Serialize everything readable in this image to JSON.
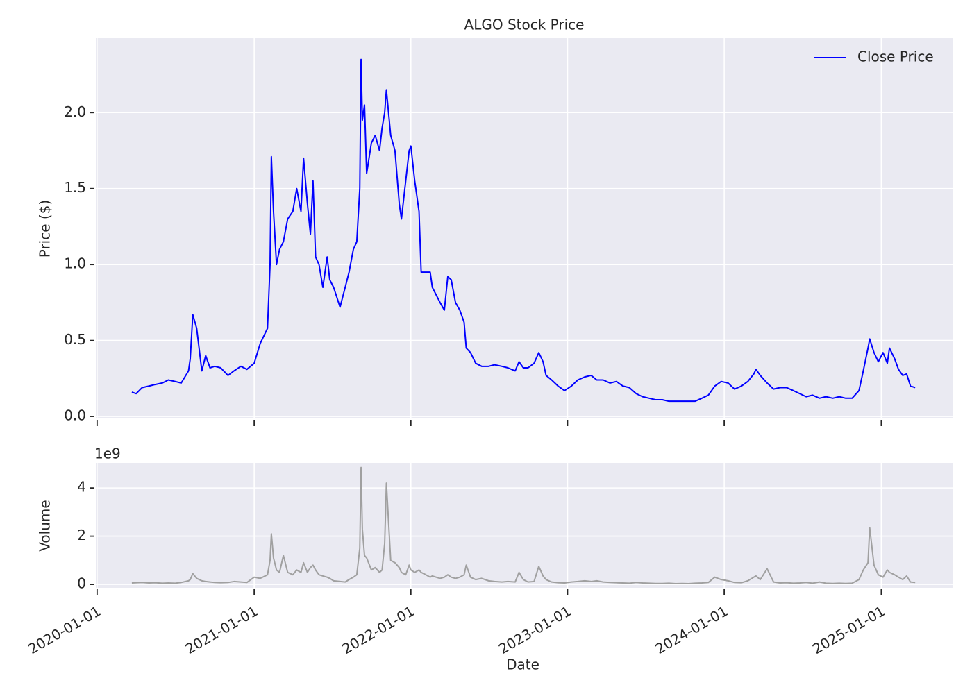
{
  "chart_data": [
    {
      "type": "line",
      "title": "ALGO Stock Price",
      "y_label": "Price ($)",
      "x": [
        "2020-03-22",
        "2020-04-01",
        "2020-04-15",
        "2020-05-01",
        "2020-05-15",
        "2020-06-01",
        "2020-06-15",
        "2020-07-01",
        "2020-07-15",
        "2020-08-01",
        "2020-08-05",
        "2020-08-11",
        "2020-08-20",
        "2020-09-01",
        "2020-09-10",
        "2020-09-20",
        "2020-10-01",
        "2020-10-15",
        "2020-11-01",
        "2020-11-15",
        "2020-12-01",
        "2020-12-15",
        "2021-01-01",
        "2021-01-15",
        "2021-02-01",
        "2021-02-07",
        "2021-02-10",
        "2021-02-15",
        "2021-02-22",
        "2021-03-01",
        "2021-03-10",
        "2021-03-20",
        "2021-04-01",
        "2021-04-10",
        "2021-04-20",
        "2021-04-26",
        "2021-05-05",
        "2021-05-12",
        "2021-05-18",
        "2021-05-24",
        "2021-06-01",
        "2021-06-10",
        "2021-06-20",
        "2021-06-26",
        "2021-07-05",
        "2021-07-20",
        "2021-08-01",
        "2021-08-10",
        "2021-08-20",
        "2021-08-28",
        "2021-09-04",
        "2021-09-07",
        "2021-09-10",
        "2021-09-15",
        "2021-09-20",
        "2021-10-01",
        "2021-10-10",
        "2021-10-20",
        "2021-10-26",
        "2021-11-01",
        "2021-11-05",
        "2021-11-15",
        "2021-11-25",
        "2021-12-05",
        "2021-12-10",
        "2021-12-20",
        "2021-12-28",
        "2022-01-01",
        "2022-01-10",
        "2022-01-20",
        "2022-01-25",
        "2022-02-05",
        "2022-02-15",
        "2022-02-20",
        "2022-03-01",
        "2022-03-10",
        "2022-03-20",
        "2022-03-28",
        "2022-04-05",
        "2022-04-15",
        "2022-04-25",
        "2022-05-05",
        "2022-05-10",
        "2022-05-20",
        "2022-06-01",
        "2022-06-15",
        "2022-07-01",
        "2022-07-15",
        "2022-08-01",
        "2022-08-15",
        "2022-09-01",
        "2022-09-10",
        "2022-09-20",
        "2022-10-01",
        "2022-10-15",
        "2022-10-26",
        "2022-11-05",
        "2022-11-12",
        "2022-11-25",
        "2022-12-10",
        "2022-12-25",
        "2023-01-10",
        "2023-01-25",
        "2023-02-10",
        "2023-02-25",
        "2023-03-10",
        "2023-03-25",
        "2023-04-10",
        "2023-04-25",
        "2023-05-10",
        "2023-05-25",
        "2023-06-10",
        "2023-06-25",
        "2023-07-10",
        "2023-07-25",
        "2023-08-10",
        "2023-08-25",
        "2023-09-10",
        "2023-09-25",
        "2023-10-10",
        "2023-10-25",
        "2023-11-10",
        "2023-11-25",
        "2023-12-10",
        "2023-12-25",
        "2024-01-10",
        "2024-01-25",
        "2024-02-10",
        "2024-02-25",
        "2024-03-10",
        "2024-03-15",
        "2024-03-25",
        "2024-04-10",
        "2024-04-25",
        "2024-05-10",
        "2024-05-25",
        "2024-06-10",
        "2024-06-25",
        "2024-07-10",
        "2024-07-25",
        "2024-08-10",
        "2024-08-25",
        "2024-09-10",
        "2024-09-25",
        "2024-10-10",
        "2024-10-25",
        "2024-11-10",
        "2024-11-20",
        "2024-12-01",
        "2024-12-05",
        "2024-12-15",
        "2024-12-25",
        "2025-01-05",
        "2025-01-15",
        "2025-01-20",
        "2025-02-01",
        "2025-02-10",
        "2025-02-20",
        "2025-03-01",
        "2025-03-10",
        "2025-03-21"
      ],
      "series": [
        {
          "name": "Close Price",
          "color": "#0000ff",
          "values": [
            0.16,
            0.15,
            0.19,
            0.2,
            0.21,
            0.22,
            0.24,
            0.23,
            0.22,
            0.3,
            0.38,
            0.67,
            0.58,
            0.3,
            0.4,
            0.32,
            0.33,
            0.32,
            0.27,
            0.3,
            0.33,
            0.31,
            0.35,
            0.48,
            0.58,
            1.0,
            1.71,
            1.35,
            1.0,
            1.1,
            1.15,
            1.3,
            1.35,
            1.5,
            1.35,
            1.7,
            1.4,
            1.2,
            1.55,
            1.05,
            1.0,
            0.85,
            1.05,
            0.9,
            0.85,
            0.72,
            0.85,
            0.95,
            1.1,
            1.15,
            1.5,
            2.35,
            1.95,
            2.05,
            1.6,
            1.8,
            1.85,
            1.75,
            1.9,
            2.0,
            2.15,
            1.85,
            1.75,
            1.4,
            1.3,
            1.55,
            1.75,
            1.78,
            1.55,
            1.35,
            0.95,
            0.95,
            0.95,
            0.85,
            0.8,
            0.75,
            0.7,
            0.92,
            0.9,
            0.75,
            0.7,
            0.62,
            0.45,
            0.42,
            0.35,
            0.33,
            0.33,
            0.34,
            0.33,
            0.32,
            0.3,
            0.36,
            0.32,
            0.32,
            0.35,
            0.42,
            0.36,
            0.27,
            0.24,
            0.2,
            0.17,
            0.2,
            0.24,
            0.26,
            0.27,
            0.24,
            0.24,
            0.22,
            0.23,
            0.2,
            0.19,
            0.15,
            0.13,
            0.12,
            0.11,
            0.11,
            0.1,
            0.1,
            0.1,
            0.1,
            0.1,
            0.12,
            0.14,
            0.2,
            0.23,
            0.22,
            0.18,
            0.2,
            0.23,
            0.28,
            0.31,
            0.27,
            0.22,
            0.18,
            0.19,
            0.19,
            0.17,
            0.15,
            0.13,
            0.14,
            0.12,
            0.13,
            0.12,
            0.13,
            0.12,
            0.12,
            0.17,
            0.3,
            0.45,
            0.51,
            0.42,
            0.36,
            0.42,
            0.35,
            0.45,
            0.38,
            0.31,
            0.27,
            0.28,
            0.2,
            0.19
          ]
        }
      ],
      "xlim": [
        "2019-12-29",
        "2025-06-16"
      ],
      "xticks": [
        "2020-01-01",
        "2021-01-01",
        "2022-01-01",
        "2023-01-01",
        "2024-01-01",
        "2025-01-01"
      ],
      "ylim": [
        -0.018,
        2.49
      ],
      "yticks": [
        {
          "value": 0,
          "label": "0.0"
        },
        {
          "value": 0.5,
          "label": "0.5"
        },
        {
          "value": 1,
          "label": "1.0"
        },
        {
          "value": 1.5,
          "label": "1.5"
        },
        {
          "value": 2,
          "label": "2.0"
        }
      ],
      "grid": true,
      "legend": "upper right"
    },
    {
      "type": "line",
      "x_label": "Date",
      "y_label": "Volume",
      "y_offset_label": "1e9",
      "color": "#a0a0a0",
      "x": [
        "2020-03-22",
        "2020-04-01",
        "2020-04-15",
        "2020-05-01",
        "2020-05-15",
        "2020-06-01",
        "2020-06-15",
        "2020-07-01",
        "2020-07-15",
        "2020-08-01",
        "2020-08-05",
        "2020-08-11",
        "2020-08-20",
        "2020-09-01",
        "2020-09-10",
        "2020-09-20",
        "2020-10-01",
        "2020-10-15",
        "2020-11-01",
        "2020-11-15",
        "2020-12-01",
        "2020-12-15",
        "2021-01-01",
        "2021-01-15",
        "2021-02-01",
        "2021-02-07",
        "2021-02-10",
        "2021-02-15",
        "2021-02-22",
        "2021-03-01",
        "2021-03-10",
        "2021-03-20",
        "2021-04-01",
        "2021-04-10",
        "2021-04-20",
        "2021-04-26",
        "2021-05-05",
        "2021-05-12",
        "2021-05-18",
        "2021-05-24",
        "2021-06-01",
        "2021-06-10",
        "2021-06-20",
        "2021-06-26",
        "2021-07-05",
        "2021-07-20",
        "2021-08-01",
        "2021-08-10",
        "2021-08-20",
        "2021-08-28",
        "2021-09-04",
        "2021-09-07",
        "2021-09-10",
        "2021-09-15",
        "2021-09-20",
        "2021-10-01",
        "2021-10-10",
        "2021-10-20",
        "2021-10-26",
        "2021-11-01",
        "2021-11-05",
        "2021-11-15",
        "2021-11-25",
        "2021-12-05",
        "2021-12-10",
        "2021-12-20",
        "2021-12-28",
        "2022-01-01",
        "2022-01-10",
        "2022-01-20",
        "2022-01-25",
        "2022-02-05",
        "2022-02-15",
        "2022-02-20",
        "2022-03-01",
        "2022-03-10",
        "2022-03-20",
        "2022-03-28",
        "2022-04-05",
        "2022-04-15",
        "2022-04-25",
        "2022-05-05",
        "2022-05-10",
        "2022-05-20",
        "2022-06-01",
        "2022-06-15",
        "2022-07-01",
        "2022-07-15",
        "2022-08-01",
        "2022-08-15",
        "2022-09-01",
        "2022-09-10",
        "2022-09-20",
        "2022-10-01",
        "2022-10-15",
        "2022-10-26",
        "2022-11-05",
        "2022-11-12",
        "2022-11-25",
        "2022-12-10",
        "2022-12-25",
        "2023-01-10",
        "2023-01-25",
        "2023-02-10",
        "2023-02-25",
        "2023-03-10",
        "2023-03-25",
        "2023-04-10",
        "2023-04-25",
        "2023-05-10",
        "2023-05-25",
        "2023-06-10",
        "2023-06-25",
        "2023-07-10",
        "2023-07-25",
        "2023-08-10",
        "2023-08-25",
        "2023-09-10",
        "2023-09-25",
        "2023-10-10",
        "2023-10-25",
        "2023-11-10",
        "2023-11-25",
        "2023-12-10",
        "2023-12-25",
        "2024-01-10",
        "2024-01-25",
        "2024-02-10",
        "2024-02-25",
        "2024-03-10",
        "2024-03-15",
        "2024-03-25",
        "2024-04-10",
        "2024-04-25",
        "2024-05-10",
        "2024-05-25",
        "2024-06-10",
        "2024-06-25",
        "2024-07-10",
        "2024-07-25",
        "2024-08-10",
        "2024-08-25",
        "2024-09-10",
        "2024-09-25",
        "2024-10-10",
        "2024-10-25",
        "2024-11-10",
        "2024-11-20",
        "2024-12-01",
        "2024-12-05",
        "2024-12-15",
        "2024-12-25",
        "2025-01-05",
        "2025-01-15",
        "2025-01-20",
        "2025-02-01",
        "2025-02-10",
        "2025-02-20",
        "2025-03-01",
        "2025-03-10",
        "2025-03-21"
      ],
      "values": [
        0.06,
        0.07,
        0.08,
        0.06,
        0.07,
        0.05,
        0.06,
        0.05,
        0.08,
        0.15,
        0.2,
        0.45,
        0.25,
        0.15,
        0.12,
        0.1,
        0.08,
        0.07,
        0.08,
        0.12,
        0.1,
        0.08,
        0.3,
        0.25,
        0.4,
        1.0,
        2.1,
        1.1,
        0.6,
        0.5,
        1.2,
        0.5,
        0.4,
        0.6,
        0.5,
        0.9,
        0.5,
        0.7,
        0.8,
        0.6,
        0.4,
        0.35,
        0.3,
        0.25,
        0.15,
        0.12,
        0.1,
        0.2,
        0.3,
        0.4,
        1.5,
        4.85,
        2.3,
        1.2,
        1.1,
        0.6,
        0.7,
        0.5,
        0.6,
        1.7,
        4.2,
        1.0,
        0.9,
        0.7,
        0.5,
        0.4,
        0.8,
        0.6,
        0.5,
        0.6,
        0.5,
        0.4,
        0.3,
        0.35,
        0.3,
        0.25,
        0.3,
        0.4,
        0.3,
        0.25,
        0.3,
        0.4,
        0.8,
        0.3,
        0.2,
        0.25,
        0.15,
        0.12,
        0.1,
        0.12,
        0.1,
        0.5,
        0.2,
        0.1,
        0.12,
        0.75,
        0.35,
        0.2,
        0.1,
        0.07,
        0.06,
        0.1,
        0.12,
        0.15,
        0.12,
        0.15,
        0.1,
        0.08,
        0.07,
        0.06,
        0.05,
        0.08,
        0.06,
        0.05,
        0.04,
        0.04,
        0.05,
        0.03,
        0.04,
        0.03,
        0.05,
        0.06,
        0.08,
        0.3,
        0.2,
        0.15,
        0.08,
        0.07,
        0.15,
        0.3,
        0.35,
        0.2,
        0.65,
        0.1,
        0.06,
        0.07,
        0.05,
        0.06,
        0.08,
        0.05,
        0.1,
        0.05,
        0.04,
        0.05,
        0.04,
        0.05,
        0.2,
        0.6,
        0.9,
        2.35,
        0.8,
        0.4,
        0.3,
        0.6,
        0.5,
        0.4,
        0.3,
        0.2,
        0.35,
        0.1,
        0.08
      ],
      "xlim": [
        "2019-12-29",
        "2025-06-16"
      ],
      "xticks": [
        "2020-01-01",
        "2021-01-01",
        "2022-01-01",
        "2023-01-01",
        "2024-01-01",
        "2025-01-01"
      ],
      "ylim": [
        -0.17,
        5.04
      ],
      "yticks": [
        0,
        2,
        4
      ],
      "grid": true
    }
  ]
}
